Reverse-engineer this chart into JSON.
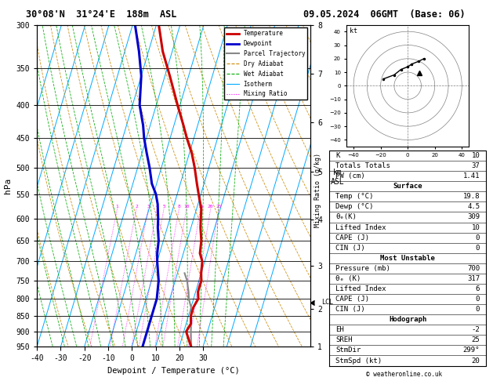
{
  "title_left": "30°08'N  31°24'E  188m  ASL",
  "title_right": "09.05.2024  06GMT  (Base: 06)",
  "xlabel": "Dewpoint / Temperature (°C)",
  "ylabel_left": "hPa",
  "pressure_levels": [
    300,
    350,
    400,
    450,
    500,
    550,
    600,
    650,
    700,
    750,
    800,
    850,
    900,
    950
  ],
  "temp_xlim": [
    -40,
    35
  ],
  "temp_xticks": [
    -40,
    -30,
    -20,
    -10,
    0,
    10,
    20,
    30
  ],
  "km_ticks": [
    1,
    2,
    3,
    4,
    5,
    6,
    7,
    8
  ],
  "km_pressures": [
    977,
    842,
    712,
    596,
    494,
    408,
    338,
    279
  ],
  "lcl_pressure": 822,
  "mixing_ratio_lines": [
    1,
    2,
    3,
    4,
    5,
    8,
    10,
    15,
    20,
    25
  ],
  "mixing_ratio_color": "#ff00ff",
  "isotherm_color": "#00aaff",
  "dry_adiabat_color": "#cc8800",
  "wet_adiabat_color": "#00aa00",
  "temp_color": "#cc0000",
  "dewp_color": "#0000cc",
  "parcel_color": "#888888",
  "temp_profile_p": [
    300,
    330,
    360,
    400,
    430,
    450,
    475,
    500,
    530,
    560,
    580,
    600,
    620,
    650,
    680,
    700,
    730,
    750,
    780,
    800,
    825,
    850,
    875,
    900,
    925,
    950
  ],
  "temp_profile_t": [
    -29,
    -24,
    -18,
    -11,
    -6,
    -3,
    1,
    4,
    7,
    10,
    12,
    13,
    14,
    16,
    17,
    19,
    20,
    21,
    21,
    22,
    21,
    21,
    22,
    21,
    23,
    25
  ],
  "dewp_profile_p": [
    300,
    330,
    360,
    400,
    430,
    450,
    475,
    500,
    530,
    550,
    560,
    570,
    600,
    620,
    650,
    680,
    700,
    750,
    800,
    850,
    900,
    950
  ],
  "dewp_profile_t": [
    -39,
    -34,
    -30,
    -27,
    -23,
    -21,
    -18,
    -15,
    -12,
    -9,
    -8,
    -7,
    -5,
    -4,
    -2,
    -1,
    0,
    3,
    4.5,
    4.5,
    4.5,
    4.5
  ],
  "parcel_profile_p": [
    950,
    900,
    850,
    825,
    800,
    780,
    750,
    730
  ],
  "parcel_profile_t": [
    25,
    23,
    21,
    20,
    18,
    17,
    15,
    13
  ],
  "skew_deg": 45,
  "legend_items": [
    [
      "Temperature",
      "#cc0000",
      "-",
      2.0
    ],
    [
      "Dewpoint",
      "#0000cc",
      "-",
      2.0
    ],
    [
      "Parcel Trajectory",
      "#888888",
      "-",
      1.5
    ],
    [
      "Dry Adiabat",
      "#cc8800",
      "--",
      0.8
    ],
    [
      "Wet Adiabat",
      "#00aa00",
      "--",
      0.8
    ],
    [
      "Isotherm",
      "#00aaff",
      "-",
      0.8
    ],
    [
      "Mixing Ratio",
      "#ff00ff",
      ":",
      0.8
    ]
  ],
  "table_data": {
    "K": "10",
    "Totals Totals": "37",
    "PW (cm)": "1.41",
    "Temp_C": "19.8",
    "Dewp_C": "4.5",
    "theta_e_K": "309",
    "Lifted_Index": "10",
    "CAPE_J": "0",
    "CIN_J": "0",
    "Pressure_mb": "700",
    "theta_e_K_mu": "317",
    "LI_mu": "6",
    "CAPE_mu": "0",
    "CIN_mu": "0",
    "EH": "-2",
    "SREH": "25",
    "StmDir": "299°",
    "StmSpd": "20"
  },
  "hodo_u": [
    -18,
    -10,
    -5,
    0,
    3,
    8,
    12
  ],
  "hodo_v": [
    5,
    8,
    12,
    14,
    16,
    18,
    20
  ],
  "storm_u": 8.7,
  "storm_v": 9.7,
  "bg_color": "#ffffff"
}
